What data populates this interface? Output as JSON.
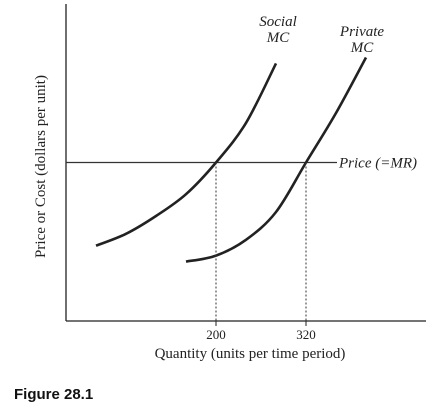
{
  "chart_data": {
    "type": "line",
    "xlabel": "Quantity (units per time period)",
    "ylabel": "Price or Cost (dollars per unit)",
    "x_ticks": [
      200,
      320
    ],
    "price_label": "Price (=MR)",
    "series": [
      {
        "name": "Social MC",
        "name_lines": [
          "Social",
          "MC"
        ],
        "x": [
          40,
          80,
          120,
          160,
          200,
          240,
          280
        ],
        "y": [
          0.38,
          0.44,
          0.53,
          0.64,
          0.8,
          1.0,
          1.3
        ]
      },
      {
        "name": "Private MC",
        "name_lines": [
          "Private",
          "MC"
        ],
        "x": [
          160,
          200,
          240,
          280,
          320,
          360,
          400
        ],
        "y": [
          0.3,
          0.33,
          0.41,
          0.55,
          0.8,
          1.05,
          1.33
        ]
      }
    ],
    "price_level": 0.8,
    "xlim": [
      0,
      480
    ],
    "ylim": [
      0,
      1.6
    ]
  },
  "caption": "Figure 28.1"
}
